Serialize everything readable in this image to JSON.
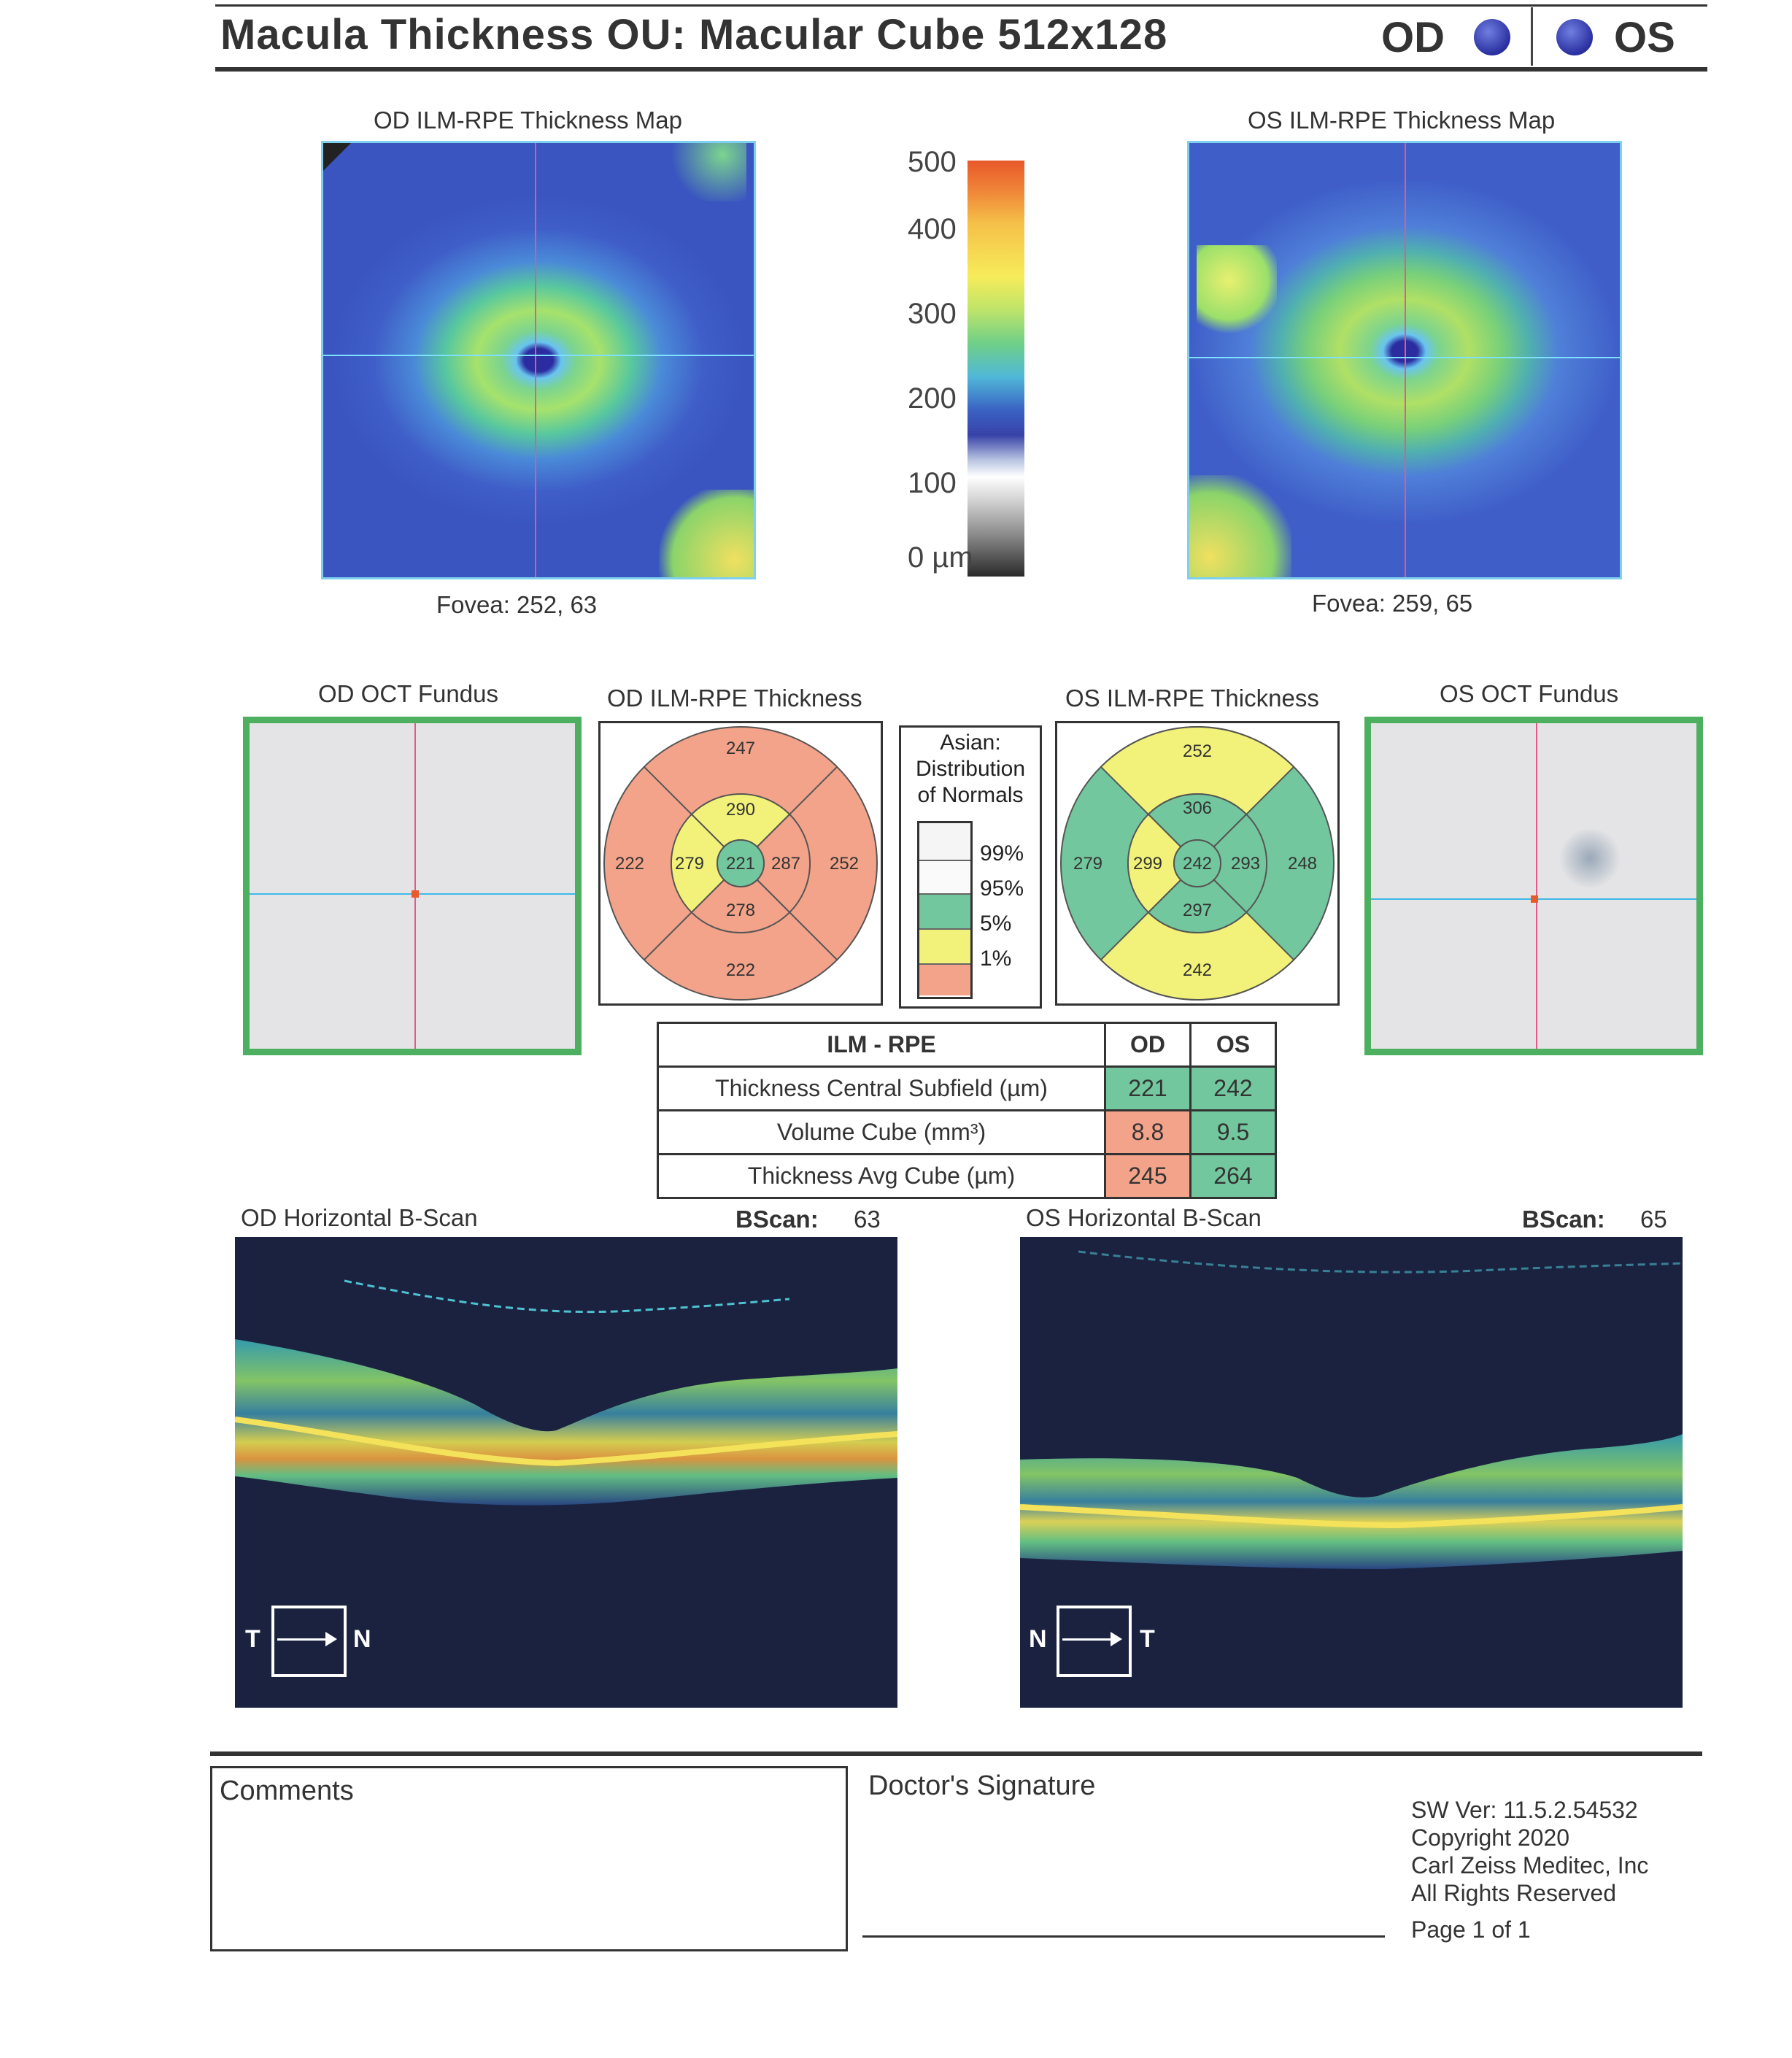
{
  "header": {
    "title": "Macula Thickness OU: Macular Cube 512x128",
    "od_label": "OD",
    "os_label": "OS"
  },
  "thickness_maps": {
    "od_title": "OD ILM-RPE Thickness Map",
    "os_title": "OS ILM-RPE Thickness Map",
    "od_fovea": "Fovea: 252, 63",
    "os_fovea": "Fovea: 259, 65"
  },
  "colorbar": {
    "labels": [
      "500",
      "400",
      "300",
      "200",
      "100",
      "0 µm"
    ]
  },
  "fundus": {
    "od_title": "OD OCT Fundus",
    "os_title": "OS OCT Fundus"
  },
  "sectors": {
    "od_title": "OD ILM-RPE Thickness",
    "os_title": "OS ILM-RPE Thickness",
    "od": {
      "superior_outer": "247",
      "superior_inner": "290",
      "temporal_outer": "222",
      "temporal_inner": "279",
      "center": "221",
      "nasal_inner": "287",
      "nasal_outer": "252",
      "inferior_inner": "278",
      "inferior_outer": "222"
    },
    "os": {
      "superior_outer": "252",
      "superior_inner": "306",
      "temporal_outer": "279",
      "temporal_inner": "299",
      "center": "242",
      "nasal_inner": "293",
      "nasal_outer": "248",
      "inferior_inner": "297",
      "inferior_outer": "242"
    }
  },
  "legend": {
    "title_line1": "Asian:",
    "title_line2": "Distribution",
    "title_line3": "of Normals",
    "levels": [
      "99%",
      "95%",
      "5%",
      "1%"
    ]
  },
  "summary_table": {
    "header": "ILM - RPE",
    "col_od": "OD",
    "col_os": "OS",
    "rows": [
      {
        "label": "Thickness Central Subfield (µm)",
        "od": "221",
        "os": "242"
      },
      {
        "label": "Volume Cube (mm³)",
        "od": "8.8",
        "os": "9.5"
      },
      {
        "label": "Thickness Avg Cube (µm)",
        "od": "245",
        "os": "264"
      }
    ]
  },
  "bscans": {
    "od_title": "OD Horizontal B-Scan",
    "os_title": "OS Horizontal B-Scan",
    "bscan_label": "BScan:",
    "od_bscan": "63",
    "os_bscan": "65",
    "od_left": "T",
    "od_right": "N",
    "os_left": "N",
    "os_right": "T"
  },
  "footer": {
    "comments": "Comments",
    "signature": "Doctor's Signature",
    "sw_ver": "SW Ver: 11.5.2.54532",
    "copyright": "Copyright 2020",
    "company": "Carl Zeiss Meditec, Inc",
    "rights": "All Rights Reserved",
    "page": "Page 1 of 1"
  },
  "colors": {
    "abnormal_red": "#f2a38a",
    "borderline_yellow": "#f2f27a",
    "normal_green": "#72c79e",
    "fundus_border": "#4db060"
  }
}
